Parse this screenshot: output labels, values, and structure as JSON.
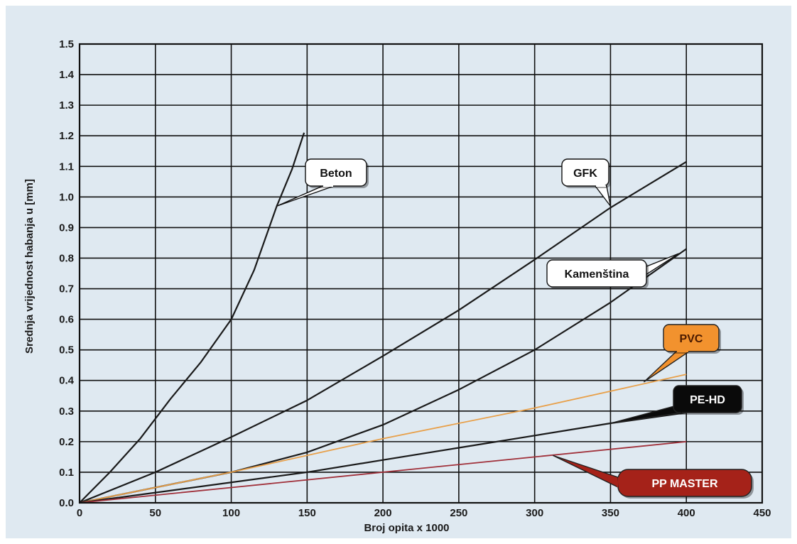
{
  "chart_data": {
    "type": "line",
    "xlabel": "Broj opita x 1000",
    "ylabel": "Srednja vrijednost habanja u [mm]",
    "xlim": [
      0,
      450
    ],
    "ylim": [
      0,
      1.5
    ],
    "x_ticks": [
      "0",
      "50",
      "100",
      "150",
      "200",
      "250",
      "300",
      "350",
      "400",
      "450"
    ],
    "y_ticks": [
      "0.0",
      "0.1",
      "0.2",
      "0.3",
      "0.4",
      "0.5",
      "0.6",
      "0.7",
      "0.8",
      "0.9",
      "1.0",
      "1.1",
      "1.2",
      "1.3",
      "1.4",
      "1.5"
    ],
    "grid": true,
    "series": [
      {
        "name": "Beton",
        "color": "#1a1a1a",
        "x": [
          0,
          20,
          40,
          60,
          80,
          100,
          115,
          130,
          140,
          148
        ],
        "y": [
          0,
          0.1,
          0.21,
          0.34,
          0.46,
          0.6,
          0.76,
          0.97,
          1.09,
          1.21
        ]
      },
      {
        "name": "GFK",
        "color": "#1a1a1a",
        "x": [
          0,
          50,
          100,
          150,
          200,
          250,
          300,
          350,
          400
        ],
        "y": [
          0,
          0.1,
          0.215,
          0.335,
          0.48,
          0.63,
          0.795,
          0.965,
          1.115
        ]
      },
      {
        "name": "Kamenština",
        "color": "#1a1a1a",
        "x": [
          0,
          100,
          150,
          200,
          250,
          300,
          350,
          400
        ],
        "y": [
          0,
          0.1,
          0.165,
          0.255,
          0.37,
          0.5,
          0.655,
          0.83
        ]
      },
      {
        "name": "PVC",
        "color": "#e8a04a",
        "x": [
          0,
          100,
          200,
          300,
          400
        ],
        "y": [
          0,
          0.1,
          0.21,
          0.31,
          0.42
        ]
      },
      {
        "name": "PE-HD",
        "color": "#1a1a1a",
        "x": [
          0,
          150,
          200,
          250,
          300,
          350,
          400
        ],
        "y": [
          0,
          0.1,
          0.14,
          0.18,
          0.22,
          0.26,
          0.295
        ]
      },
      {
        "name": "PP MASTER",
        "color": "#a0303a",
        "x": [
          0,
          100,
          200,
          300,
          400
        ],
        "y": [
          0,
          0.05,
          0.1,
          0.15,
          0.2
        ]
      }
    ],
    "callouts": [
      {
        "label": "Beton",
        "fill": "#ffffff",
        "text_color": "#111111",
        "target": [
          130,
          0.97
        ]
      },
      {
        "label": "GFK",
        "fill": "#ffffff",
        "text_color": "#111111",
        "target": [
          350,
          0.97
        ]
      },
      {
        "label": "Kamenština",
        "fill": "#ffffff",
        "text_color": "#111111",
        "target": [
          395,
          0.815
        ]
      },
      {
        "label": "PVC",
        "fill": "#f2922e",
        "text_color": "#4a1a00",
        "target": [
          372,
          0.395
        ]
      },
      {
        "label": "PE-HD",
        "fill": "#0a0a0a",
        "text_color": "#ffffff",
        "target": [
          350,
          0.26
        ]
      },
      {
        "label": "PP MASTER",
        "fill": "#a52219",
        "text_color": "#ffffff",
        "target": [
          312,
          0.155
        ]
      }
    ]
  }
}
